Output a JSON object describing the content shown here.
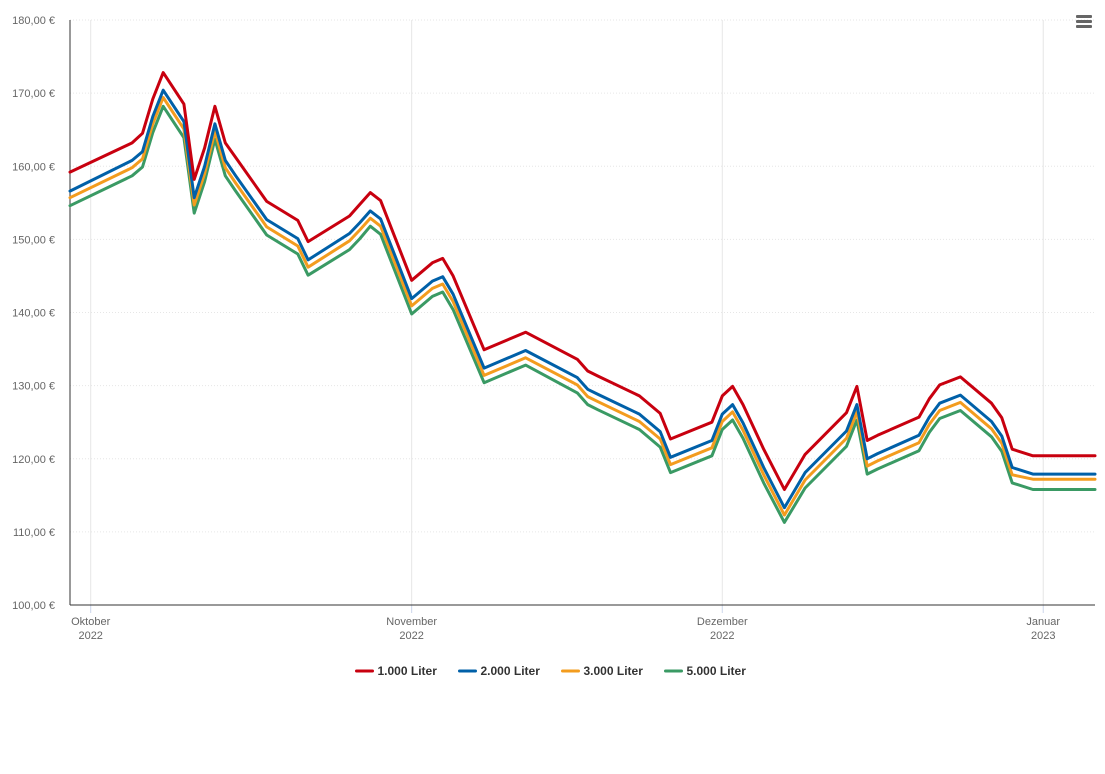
{
  "chart_data": {
    "type": "line",
    "title": "",
    "xlabel": "",
    "ylabel": "",
    "x_ticks": [
      {
        "label": "Oktober",
        "year": "2022",
        "date": "2022-10-01"
      },
      {
        "label": "November",
        "year": "2022",
        "date": "2022-11-01"
      },
      {
        "label": "Dezember",
        "year": "2022",
        "date": "2022-12-01"
      },
      {
        "label": "Januar",
        "year": "2023",
        "date": "2023-01-01"
      }
    ],
    "y_ticks": [
      "100,00 €",
      "110,00 €",
      "120,00 €",
      "130,00 €",
      "140,00 €",
      "150,00 €",
      "160,00 €",
      "170,00 €",
      "180,00 €"
    ],
    "ylim": [
      100,
      180
    ],
    "xlim": [
      "2022-09-29",
      "2023-01-06"
    ],
    "grid": true,
    "legend_position": "bottom",
    "x": [
      "2022-09-29",
      "2022-10-05",
      "2022-10-06",
      "2022-10-07",
      "2022-10-08",
      "2022-10-10",
      "2022-10-11",
      "2022-10-12",
      "2022-10-13",
      "2022-10-14",
      "2022-10-15",
      "2022-10-18",
      "2022-10-21",
      "2022-10-22",
      "2022-10-26",
      "2022-10-27",
      "2022-10-28",
      "2022-10-29",
      "2022-11-01",
      "2022-11-03",
      "2022-11-04",
      "2022-11-05",
      "2022-11-08",
      "2022-11-12",
      "2022-11-17",
      "2022-11-18",
      "2022-11-19",
      "2022-11-23",
      "2022-11-25",
      "2022-11-26",
      "2022-11-30",
      "2022-12-01",
      "2022-12-02",
      "2022-12-03",
      "2022-12-05",
      "2022-12-07",
      "2022-12-09",
      "2022-12-13",
      "2022-12-14",
      "2022-12-15",
      "2022-12-16",
      "2022-12-20",
      "2022-12-21",
      "2022-12-22",
      "2022-12-24",
      "2022-12-27",
      "2022-12-28",
      "2022-12-29",
      "2022-12-31",
      "2023-01-01",
      "2023-01-04",
      "2023-01-05",
      "2023-01-06"
    ],
    "series": [
      {
        "name": "1.000 Liter",
        "color": "#c8000f",
        "values": [
          159.2,
          163.2,
          164.5,
          169.2,
          172.8,
          168.5,
          158.2,
          162.5,
          168.2,
          163.2,
          161.2,
          155.2,
          152.6,
          149.7,
          153.2,
          154.8,
          156.4,
          155.3,
          144.4,
          146.8,
          147.4,
          145.0,
          134.9,
          137.3,
          133.6,
          132.0,
          131.3,
          128.6,
          126.2,
          122.7,
          125.0,
          128.6,
          129.9,
          127.4,
          121.3,
          115.8,
          120.6,
          126.3,
          129.9,
          122.5,
          123.2,
          125.7,
          128.2,
          130.1,
          131.2,
          127.6,
          125.6,
          121.3,
          120.4,
          120.4,
          120.4,
          120.4,
          120.4
        ]
      },
      {
        "name": "2.000 Liter",
        "color": "#0060a8",
        "values": [
          156.6,
          160.8,
          162.0,
          166.8,
          170.4,
          166.1,
          155.7,
          160.0,
          165.8,
          160.8,
          158.7,
          152.7,
          150.1,
          147.2,
          150.8,
          152.3,
          153.9,
          152.8,
          141.9,
          144.3,
          144.9,
          142.5,
          132.4,
          134.8,
          131.1,
          129.5,
          128.8,
          126.1,
          123.7,
          120.2,
          122.5,
          126.1,
          127.4,
          124.9,
          118.8,
          113.3,
          118.1,
          123.8,
          127.4,
          120.0,
          120.7,
          123.2,
          125.7,
          127.6,
          128.7,
          125.1,
          123.1,
          118.8,
          117.9,
          117.9,
          117.9,
          117.9,
          117.9
        ]
      },
      {
        "name": "3.000 Liter",
        "color": "#f39c1e",
        "values": [
          155.7,
          159.8,
          161.0,
          165.8,
          169.4,
          165.1,
          154.7,
          159.0,
          164.8,
          159.8,
          157.7,
          151.7,
          149.1,
          146.2,
          149.8,
          151.3,
          152.9,
          151.8,
          140.9,
          143.3,
          143.9,
          141.5,
          131.4,
          133.8,
          130.1,
          128.5,
          127.8,
          125.1,
          122.7,
          119.2,
          121.5,
          125.1,
          126.4,
          123.9,
          117.8,
          112.3,
          117.1,
          122.8,
          126.4,
          119.0,
          119.7,
          122.2,
          124.7,
          126.6,
          127.7,
          124.1,
          122.1,
          117.8,
          117.2,
          117.2,
          117.2,
          117.2,
          117.2
        ]
      },
      {
        "name": "5.000 Liter",
        "color": "#3a9a64",
        "values": [
          154.6,
          158.7,
          159.9,
          164.6,
          168.2,
          163.9,
          153.6,
          157.9,
          163.7,
          158.7,
          156.6,
          150.6,
          148.0,
          145.1,
          148.6,
          150.1,
          151.8,
          150.7,
          139.8,
          142.2,
          142.8,
          140.4,
          130.4,
          132.8,
          129.0,
          127.4,
          126.7,
          124.0,
          121.6,
          118.1,
          120.4,
          124.0,
          125.3,
          122.8,
          116.7,
          111.3,
          116.0,
          121.7,
          125.3,
          117.9,
          118.6,
          121.1,
          123.6,
          125.5,
          126.6,
          123.0,
          121.0,
          116.7,
          115.8,
          115.8,
          115.8,
          115.8,
          115.8
        ]
      }
    ]
  },
  "ui": {
    "menu_icon": "hamburger-menu-icon"
  }
}
